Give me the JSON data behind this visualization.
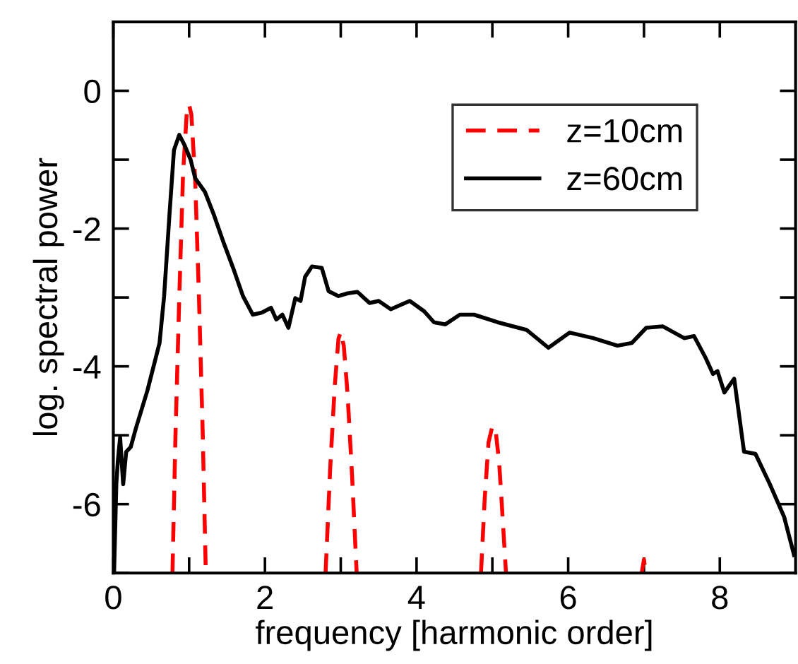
{
  "chart_data": {
    "type": "line",
    "xlabel": "frequency [harmonic order]",
    "ylabel": "log. spectral power",
    "xlim": [
      0,
      9
    ],
    "ylim": [
      -7,
      1
    ],
    "xticks": [
      0,
      {
        "value": 1,
        "label": null
      },
      2,
      {
        "value": 3,
        "label": null
      },
      4,
      {
        "value": 5,
        "label": null
      },
      6,
      {
        "value": 7,
        "label": null
      },
      8
    ],
    "yticks": [
      {
        "value": -7,
        "label": null
      },
      -6,
      {
        "value": -5,
        "label": null
      },
      -4,
      {
        "value": -3,
        "label": null
      },
      -2,
      {
        "value": -1,
        "label": null
      },
      0
    ],
    "grid": false,
    "legend": "top right",
    "series": [
      {
        "name": "z=10cm",
        "color": "#ff0000",
        "line_style": "dashed",
        "x": [
          0.78,
          0.82,
          0.87,
          0.92,
          0.97,
          1.0,
          1.03,
          1.08,
          1.13,
          1.18,
          1.22,
          2.0,
          2.8,
          2.86,
          2.92,
          2.97,
          3.0,
          3.04,
          3.09,
          3.15,
          3.21,
          4.0,
          4.85,
          4.9,
          4.95,
          5.0,
          5.04,
          5.09,
          5.13,
          5.18,
          6.0,
          6.97,
          7.0,
          7.02
        ],
        "values": [
          -7,
          -5,
          -3,
          -1.2,
          -0.3,
          -0.2,
          -0.35,
          -1.3,
          -3,
          -5,
          -7,
          null,
          -7,
          -5.5,
          -4.3,
          -3.6,
          -3.5,
          -3.7,
          -4.4,
          -5.6,
          -7,
          null,
          -7,
          -5.9,
          -5.1,
          -4.87,
          -4.9,
          -5.4,
          -6.1,
          -7,
          null,
          -7,
          -6.8,
          -7
        ]
      },
      {
        "name": "z=60cm",
        "color": "#000000",
        "line_style": "solid",
        "x": [
          0.01,
          0.04,
          0.06,
          0.09,
          0.13,
          0.17,
          0.23,
          0.3,
          0.45,
          0.61,
          0.67,
          0.74,
          0.8,
          0.87,
          0.94,
          1.02,
          1.08,
          1.21,
          1.33,
          1.46,
          1.58,
          1.71,
          1.84,
          1.96,
          2.08,
          2.15,
          2.23,
          2.31,
          2.4,
          2.47,
          2.53,
          2.62,
          2.75,
          2.84,
          2.97,
          3.09,
          3.22,
          3.38,
          3.5,
          3.66,
          3.91,
          4.1,
          4.23,
          4.38,
          4.57,
          4.76,
          5.07,
          5.45,
          5.74,
          6.02,
          6.33,
          6.65,
          6.84,
          7.03,
          7.25,
          7.53,
          7.66,
          7.81,
          7.91,
          7.97,
          8.06,
          8.19,
          8.32,
          8.47,
          8.66,
          8.85,
          8.98
        ],
        "values": [
          -7,
          -5.7,
          -5.37,
          -5.03,
          -5.71,
          -5.24,
          -5.17,
          -4.89,
          -4.35,
          -3.66,
          -2.98,
          -1.81,
          -0.86,
          -0.64,
          -0.79,
          -1.0,
          -1.27,
          -1.47,
          -1.81,
          -2.22,
          -2.57,
          -2.98,
          -3.25,
          -3.22,
          -3.15,
          -3.32,
          -3.25,
          -3.44,
          -3.01,
          -3.05,
          -2.7,
          -2.55,
          -2.57,
          -2.91,
          -2.98,
          -2.94,
          -2.92,
          -3.08,
          -3.05,
          -3.17,
          -3.05,
          -3.2,
          -3.36,
          -3.39,
          -3.25,
          -3.25,
          -3.36,
          -3.47,
          -3.73,
          -3.51,
          -3.59,
          -3.7,
          -3.66,
          -3.44,
          -3.42,
          -3.59,
          -3.56,
          -3.87,
          -4.11,
          -4.07,
          -4.38,
          -4.18,
          -5.24,
          -5.27,
          -5.71,
          -6.19,
          -6.74
        ]
      }
    ]
  }
}
